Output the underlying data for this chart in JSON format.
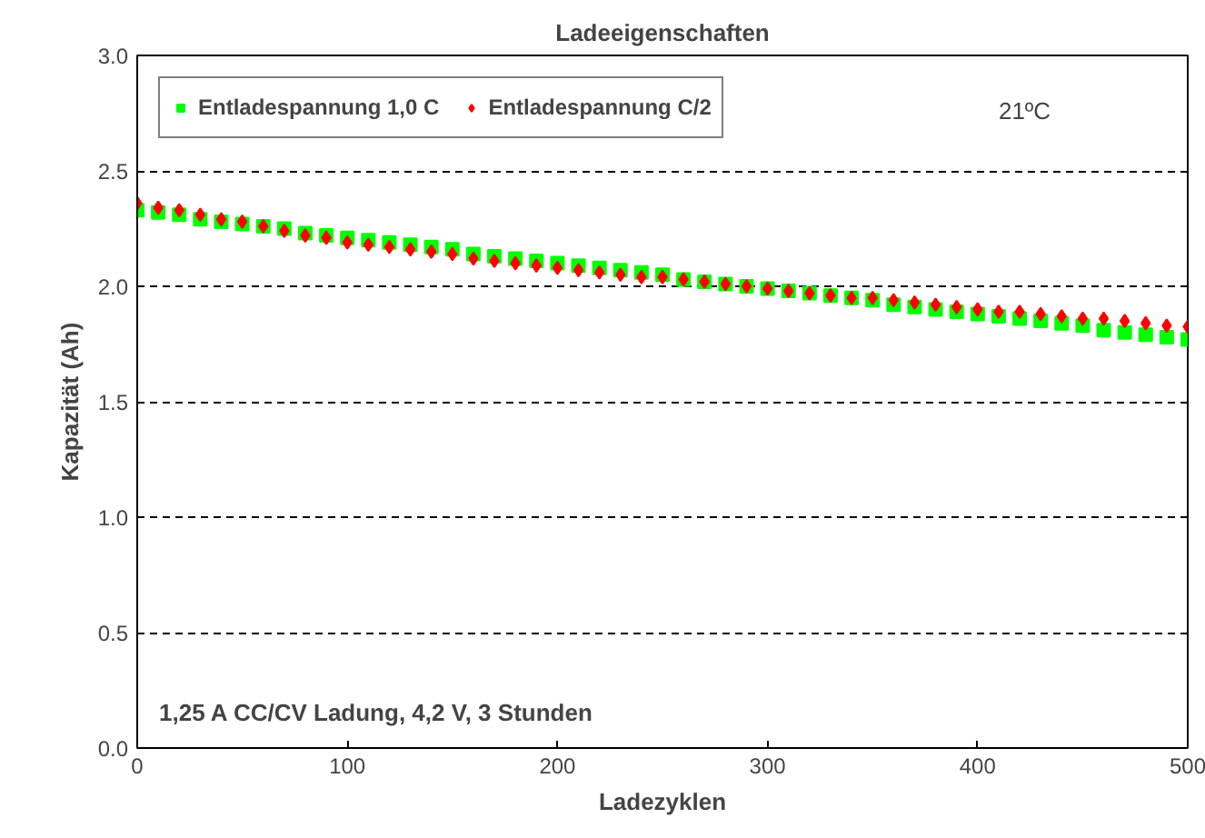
{
  "chart_data": {
    "type": "scatter",
    "title": "Ladeeigenschaften",
    "xlabel": "Ladezyklen",
    "ylabel": "Kapazität (Ah)",
    "x": [
      0,
      10,
      20,
      30,
      40,
      50,
      60,
      70,
      80,
      90,
      100,
      110,
      120,
      130,
      140,
      150,
      160,
      170,
      180,
      190,
      200,
      210,
      220,
      230,
      240,
      250,
      260,
      270,
      280,
      290,
      300,
      310,
      320,
      330,
      340,
      350,
      360,
      370,
      380,
      390,
      400,
      410,
      420,
      430,
      440,
      450,
      460,
      470,
      480,
      490,
      500
    ],
    "series": [
      {
        "name": "Entladespannung 1,0 C",
        "color": "#00ff00",
        "marker": "square",
        "values": [
          2.33,
          2.32,
          2.31,
          2.29,
          2.28,
          2.27,
          2.26,
          2.25,
          2.23,
          2.22,
          2.21,
          2.2,
          2.19,
          2.18,
          2.17,
          2.16,
          2.14,
          2.13,
          2.12,
          2.11,
          2.1,
          2.09,
          2.08,
          2.07,
          2.06,
          2.05,
          2.03,
          2.02,
          2.01,
          2.0,
          1.99,
          1.98,
          1.97,
          1.96,
          1.95,
          1.94,
          1.92,
          1.91,
          1.9,
          1.89,
          1.88,
          1.87,
          1.86,
          1.85,
          1.84,
          1.83,
          1.81,
          1.8,
          1.79,
          1.78,
          1.77
        ]
      },
      {
        "name": "Entladespannung C/2",
        "color": "#ff0000",
        "marker": "diamond",
        "values": [
          2.36,
          2.34,
          2.33,
          2.31,
          2.29,
          2.28,
          2.26,
          2.24,
          2.22,
          2.21,
          2.19,
          2.18,
          2.17,
          2.16,
          2.15,
          2.14,
          2.12,
          2.11,
          2.1,
          2.09,
          2.08,
          2.07,
          2.06,
          2.05,
          2.04,
          2.04,
          2.03,
          2.02,
          2.01,
          2.0,
          1.99,
          1.98,
          1.97,
          1.96,
          1.95,
          1.95,
          1.94,
          1.93,
          1.92,
          1.91,
          1.9,
          1.89,
          1.89,
          1.88,
          1.87,
          1.86,
          1.86,
          1.85,
          1.84,
          1.83,
          1.825
        ]
      }
    ],
    "xlim": [
      0,
      500
    ],
    "xticks": [
      0,
      100,
      200,
      300,
      400,
      500
    ],
    "ylim": [
      0,
      3
    ],
    "yticks": [
      {
        "value": 0,
        "label": "0.0"
      },
      {
        "value": 0.5,
        "label": "0.5"
      },
      {
        "value": 1,
        "label": "1.0"
      },
      {
        "value": 1.5,
        "label": "1.5"
      },
      {
        "value": 2,
        "label": "2.0"
      },
      {
        "value": 2.5,
        "label": "2.5"
      },
      {
        "value": 3,
        "label": "3.0"
      }
    ],
    "grid": "y",
    "legend": "top left",
    "annotations": [
      "21ºC",
      "1,25 A CC/CV Ladung, 4,2 V, 3 Stunden"
    ]
  }
}
